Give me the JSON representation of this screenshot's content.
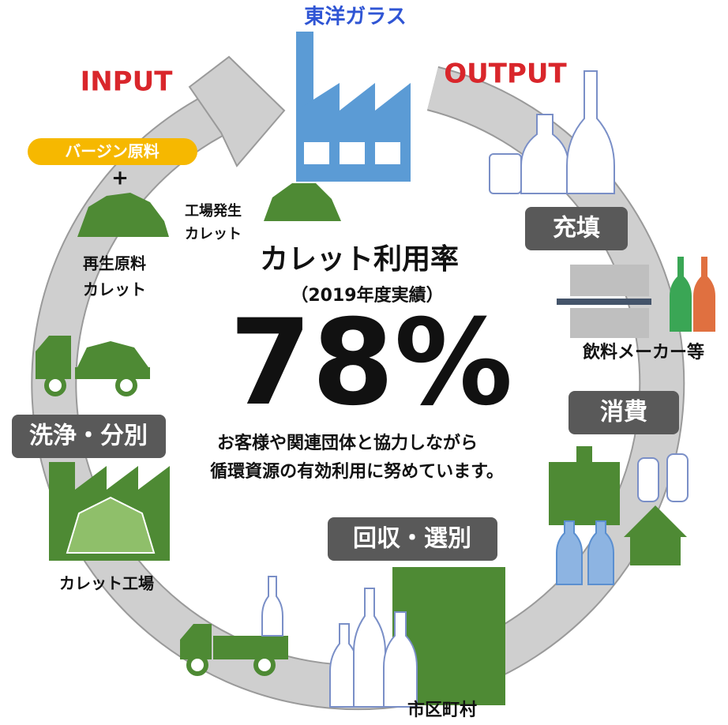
{
  "company": "東洋ガラス",
  "input": "INPUT",
  "output": "OUTPUT",
  "virgin": "バージン原料",
  "plus": "+",
  "recycled": [
    "再生原料",
    "カレット"
  ],
  "factory_cullet": [
    "工場発生",
    "カレット"
  ],
  "center": {
    "title": "カレット利用率",
    "subtitle": "（2019年度実績）",
    "rate": "78%",
    "message": [
      "お客様や関連団体と協力しながら",
      "循環資源の有効利用に努めています。"
    ]
  },
  "stages": {
    "filling": "充填",
    "beverage": "飲料メーカー等",
    "consumption": "消費",
    "collection": "回収・選別",
    "municipality": "市区町村",
    "washing": "洗浄・分別",
    "cullet_plant": "カレット工場"
  }
}
